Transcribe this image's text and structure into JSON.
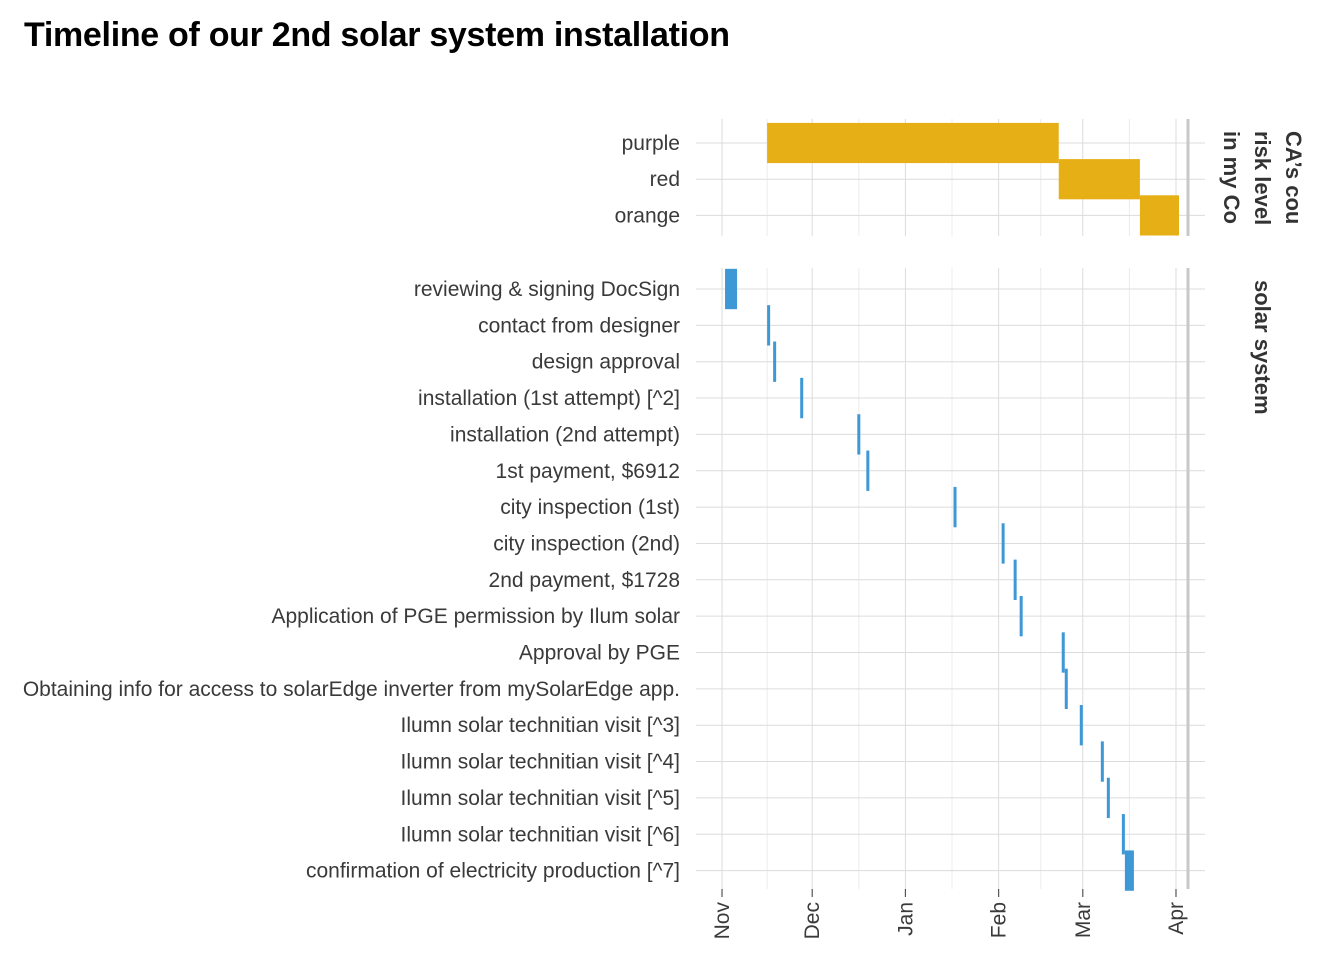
{
  "chart_data": {
    "type": "gantt",
    "title": "Timeline of our 2nd solar system installation",
    "x_axis": {
      "type": "date",
      "range": [
        "2020-10-27",
        "2021-04-03"
      ],
      "ticks": [
        {
          "date": "2020-11-01",
          "label": "Nov"
        },
        {
          "date": "2020-12-01",
          "label": "Dec"
        },
        {
          "date": "2021-01-01",
          "label": "Jan"
        },
        {
          "date": "2021-02-01",
          "label": "Feb"
        },
        {
          "date": "2021-03-01",
          "label": "Mar"
        },
        {
          "date": "2021-04-01",
          "label": "Apr"
        }
      ],
      "reference_line": "2021-04-05"
    },
    "panels": [
      {
        "strip_label": "CA’s county risk level in my County",
        "strip_lines": [
          "CA’s cou",
          "risk level",
          "in my Co"
        ],
        "color": "#E6AF16",
        "tasks": [
          {
            "label": "purple",
            "start": "2020-11-16",
            "end": "2021-02-21"
          },
          {
            "label": "red",
            "start": "2021-02-21",
            "end": "2021-03-20"
          },
          {
            "label": "orange",
            "start": "2021-03-20",
            "end": "2021-04-02"
          }
        ]
      },
      {
        "strip_label": "solar system",
        "strip_lines": [
          "solar system"
        ],
        "color": "#3F98D6",
        "tasks": [
          {
            "label": "reviewing & signing DocSign",
            "start": "2020-11-02",
            "end": "2020-11-06"
          },
          {
            "label": "contact from designer",
            "start": "2020-11-16",
            "end": "2020-11-17"
          },
          {
            "label": "design approval",
            "start": "2020-11-18",
            "end": "2020-11-19"
          },
          {
            "label": "installation (1st attempt) [^2]",
            "start": "2020-11-27",
            "end": "2020-11-28"
          },
          {
            "label": "installation (2nd attempt)",
            "start": "2020-12-16",
            "end": "2020-12-17"
          },
          {
            "label": "1st payment, $6912",
            "start": "2020-12-19",
            "end": "2020-12-20"
          },
          {
            "label": "city inspection (1st)",
            "start": "2021-01-17",
            "end": "2021-01-18"
          },
          {
            "label": "city inspection (2nd)",
            "start": "2021-02-02",
            "end": "2021-02-03"
          },
          {
            "label": "2nd payment, $1728",
            "start": "2021-02-06",
            "end": "2021-02-07"
          },
          {
            "label": "Application of PGE permission by Ilum solar",
            "start": "2021-02-08",
            "end": "2021-02-09"
          },
          {
            "label": "Approval by PGE",
            "start": "2021-02-22",
            "end": "2021-02-23"
          },
          {
            "label": "Obtaining info for access to solarEdge inverter from mySolarEdge app.",
            "start": "2021-02-23",
            "end": "2021-02-24"
          },
          {
            "label": "Ilumn solar technitian visit [^3]",
            "start": "2021-02-28",
            "end": "2021-03-01"
          },
          {
            "label": "Ilumn solar technitian visit [^4]",
            "start": "2021-03-07",
            "end": "2021-03-08"
          },
          {
            "label": "Ilumn solar technitian visit [^5]",
            "start": "2021-03-09",
            "end": "2021-03-10"
          },
          {
            "label": "Ilumn solar technitian visit [^6]",
            "start": "2021-03-14",
            "end": "2021-03-15"
          },
          {
            "label": "confirmation of electricity production [^7]",
            "start": "2021-03-15",
            "end": "2021-03-18"
          }
        ]
      }
    ]
  }
}
